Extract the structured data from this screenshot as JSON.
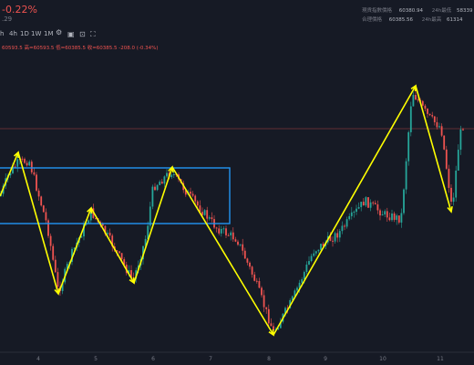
{
  "header": {
    "change": "-0.22%",
    "sub_value": ".29",
    "timeframes": [
      "h",
      "4h",
      "1D",
      "1W",
      "1M"
    ],
    "ohlc": "60593.5  高=60593.5  低=60385.5  收=60385.5  -208.0 (-0.34%)"
  },
  "info_panel": [
    {
      "label": "現貨指數價格",
      "value": "60380.94",
      "label2": "24h最低",
      "value2": "58339"
    },
    {
      "label": "合理價格",
      "value": "60385.56",
      "label2": "24h最高",
      "value2": "61314"
    }
  ],
  "toolbar": {
    "icons": [
      "settings-icon",
      "camera-icon",
      "cursor-icon",
      "fullscreen-icon"
    ]
  },
  "chart_data": {
    "type": "candlestick",
    "x_ticks": [
      "4",
      "5",
      "6",
      "7",
      "8",
      "9",
      "10",
      "11"
    ],
    "colors": {
      "up": "#26a69a",
      "down": "#ef5350",
      "annotation": "#ffff00",
      "rectangle": "#2196f3",
      "last_price_line": "#ef5350"
    },
    "annotations": {
      "zigzag": "yellow arrows tracing swing highs and lows",
      "rectangle": "blue range box around day 4 to day 7"
    }
  }
}
